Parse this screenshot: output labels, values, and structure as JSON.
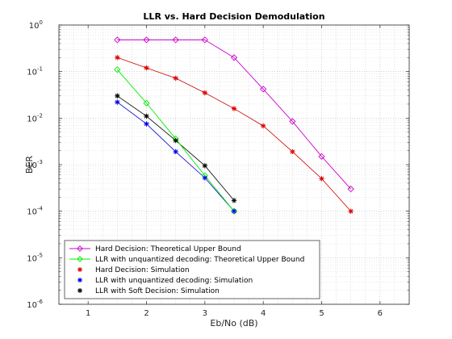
{
  "chart_data": {
    "type": "line",
    "title": "LLR vs. Hard Decision Demodulation",
    "xlabel": "Eb/No (dB)",
    "ylabel": "BER",
    "xlim": [
      0.5,
      6.5
    ],
    "ylim": [
      1e-06,
      1
    ],
    "yscale": "log",
    "xticks": [
      "1",
      "2",
      "3",
      "4",
      "5",
      "6"
    ],
    "yticks": [
      {
        "base": "10",
        "exp": "-6"
      },
      {
        "base": "10",
        "exp": "-5"
      },
      {
        "base": "10",
        "exp": "-4"
      },
      {
        "base": "10",
        "exp": "-3"
      },
      {
        "base": "10",
        "exp": "-2"
      },
      {
        "base": "10",
        "exp": "-1"
      },
      {
        "base": "10",
        "exp": "0"
      }
    ],
    "grid": "dotted major and minor",
    "legend_position": "bottom-left",
    "series": [
      {
        "name": "Hard Decision: Theoretical Upper Bound",
        "color": "#cc00cc",
        "marker": "diamond",
        "line": true,
        "x": [
          1.5,
          2,
          2.5,
          3,
          3.5,
          4,
          4.5,
          5,
          5.5
        ],
        "y": [
          0.48,
          0.48,
          0.48,
          0.48,
          0.2,
          0.042,
          0.0085,
          0.0015,
          0.0003
        ]
      },
      {
        "name": "LLR with unquantized decoding: Theoretical Upper Bound",
        "color": "#00ee00",
        "marker": "diamond",
        "line": true,
        "x": [
          1.5,
          2,
          2.5,
          3,
          3.5
        ],
        "y": [
          0.11,
          0.021,
          0.0036,
          0.00058,
          0.0001
        ]
      },
      {
        "name": "Hard Decision: Simulation",
        "color": "#dd0000",
        "marker": "star",
        "line": false,
        "x": [
          1.5,
          2,
          2.5,
          3,
          3.5,
          4,
          4.5,
          5,
          5.5
        ],
        "y": [
          0.2,
          0.12,
          0.072,
          0.035,
          0.016,
          0.0068,
          0.0019,
          0.0005,
          0.0001
        ]
      },
      {
        "name": "LLR with unquantized decoding: Simulation",
        "color": "#0000ee",
        "marker": "star",
        "line": false,
        "x": [
          1.5,
          2,
          2.5,
          3,
          3.5
        ],
        "y": [
          0.022,
          0.0075,
          0.0019,
          0.00052,
          0.0001
        ]
      },
      {
        "name": "LLR with Soft Decision: Simulation",
        "color": "#000000",
        "marker": "star",
        "line": false,
        "x": [
          1.5,
          2,
          2.5,
          3,
          3.5
        ],
        "y": [
          0.03,
          0.011,
          0.0033,
          0.00095,
          0.00017
        ]
      }
    ],
    "fit_lines": [
      {
        "series_color": "#cc0000",
        "x": [
          1.5,
          2,
          2.5,
          3,
          3.5,
          4,
          4.5,
          5,
          5.5
        ],
        "y": [
          0.2,
          0.12,
          0.072,
          0.035,
          0.016,
          0.0068,
          0.0019,
          0.0005,
          0.0001
        ]
      },
      {
        "series_color": "#0000cc",
        "x": [
          1.5,
          2,
          2.5,
          3,
          3.5
        ],
        "y": [
          0.022,
          0.0075,
          0.0019,
          0.00052,
          0.0001
        ]
      },
      {
        "series_color": "#000000",
        "x": [
          1.5,
          2,
          2.5,
          3,
          3.5
        ],
        "y": [
          0.03,
          0.011,
          0.0033,
          0.00095,
          0.00017
        ]
      }
    ]
  }
}
